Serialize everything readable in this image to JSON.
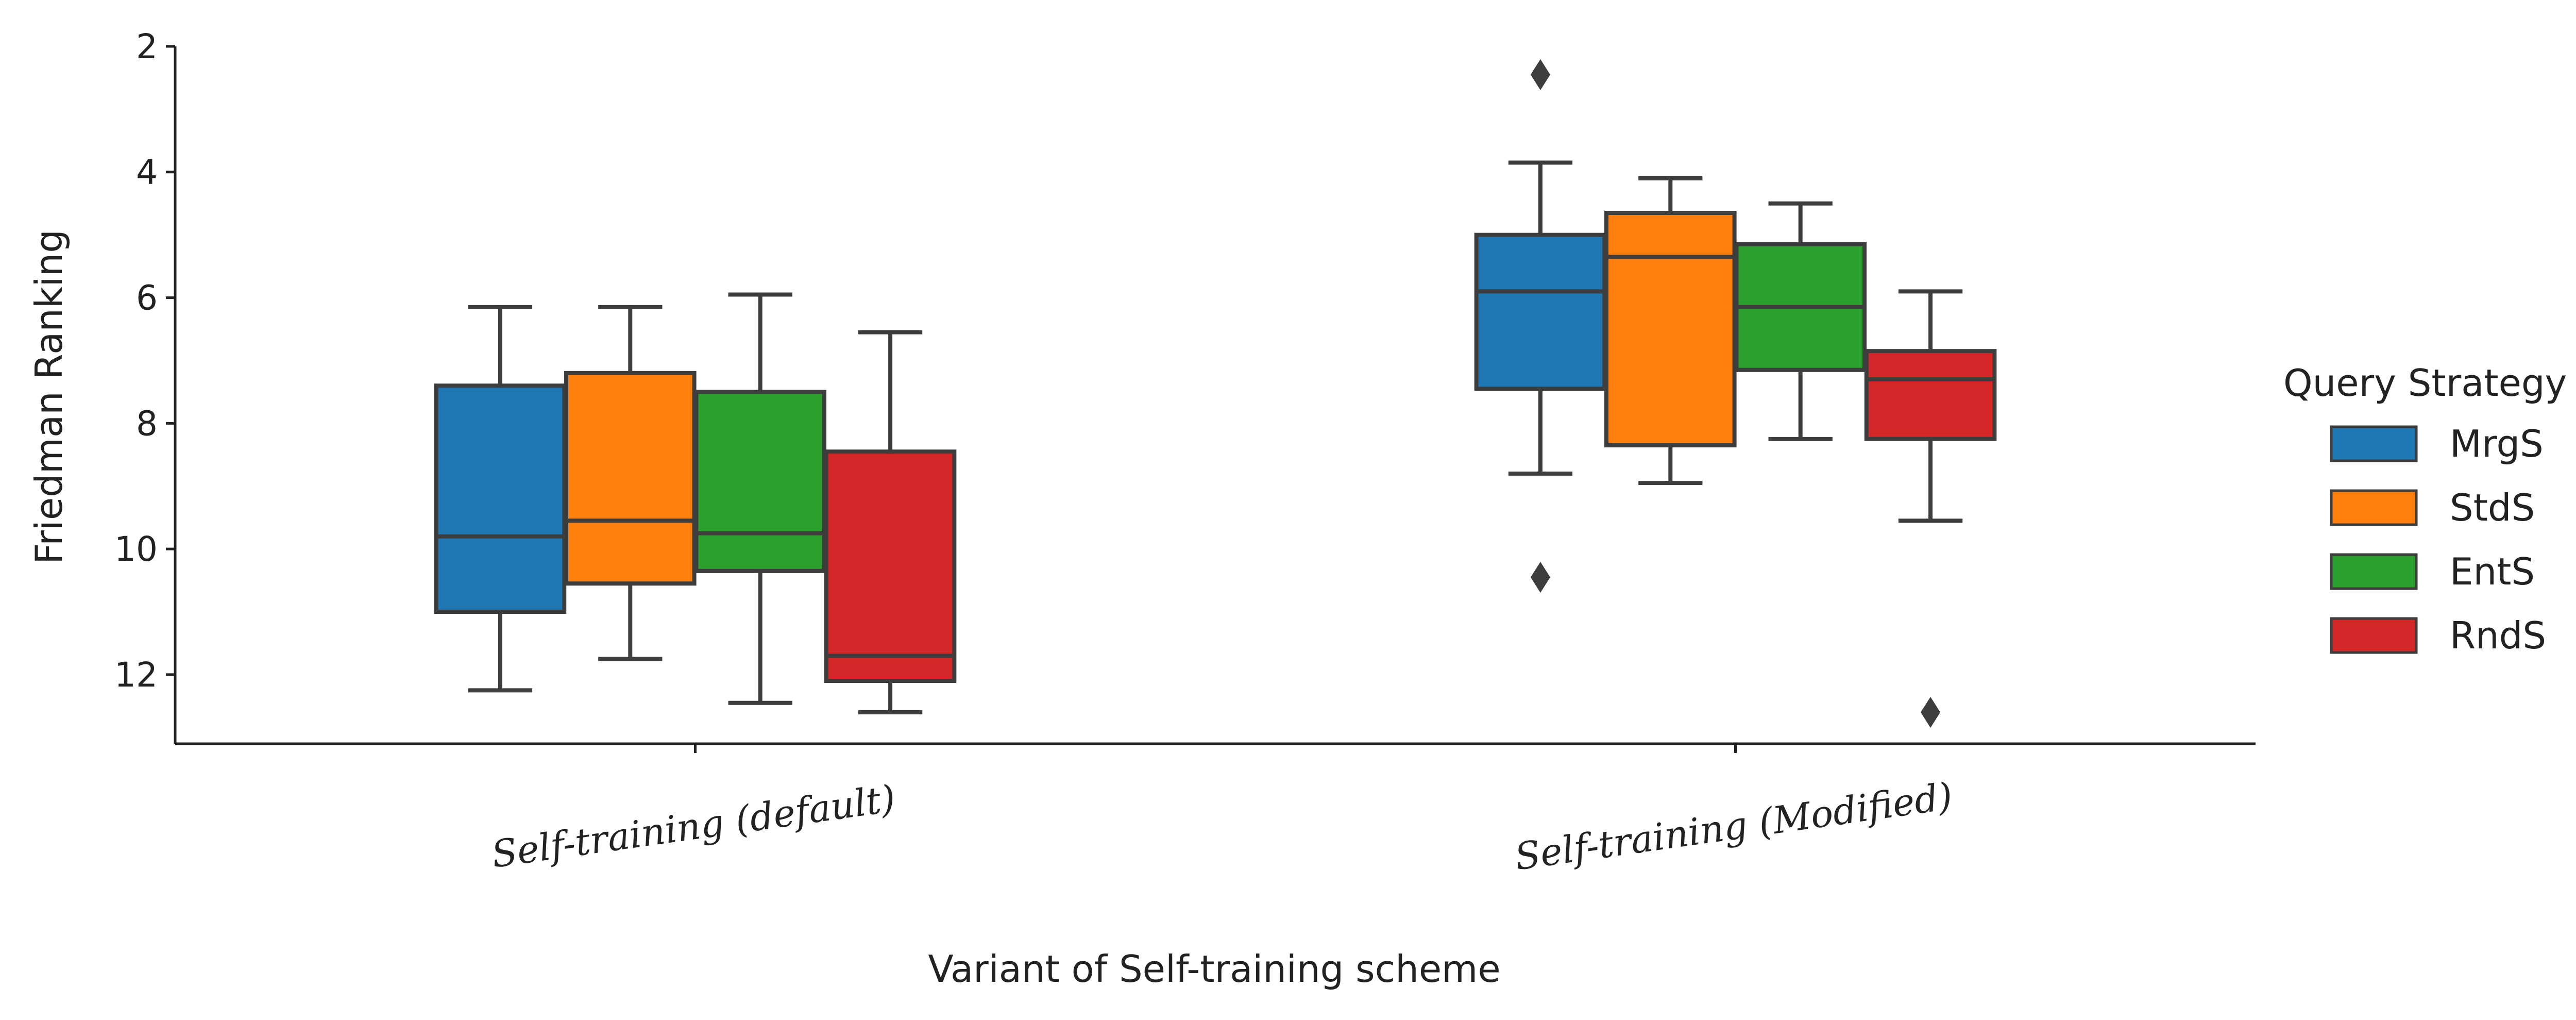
{
  "chart_data": {
    "type": "box",
    "xlabel": "Variant of Self-training scheme",
    "ylabel": "Friedman Ranking",
    "ylim": [
      13.1,
      2.0
    ],
    "y_inverted": true,
    "yticks": [
      2,
      4,
      6,
      8,
      10,
      12
    ],
    "categories": [
      "Self-training (default)",
      "Self-training (Modified)"
    ],
    "legend": {
      "title": "Query Strategy",
      "placement": "center-right"
    },
    "grid": false,
    "series": [
      {
        "name": "MrgS",
        "color": "#1f77b4",
        "boxes": [
          {
            "whisker_low": 6.15,
            "q1": 7.4,
            "median": 9.8,
            "q3": 11.0,
            "whisker_high": 12.25,
            "outliers": []
          },
          {
            "whisker_low": 3.85,
            "q1": 5.0,
            "median": 5.9,
            "q3": 7.45,
            "whisker_high": 8.8,
            "outliers": [
              2.45,
              10.45
            ]
          }
        ]
      },
      {
        "name": "StdS",
        "color": "#ff7f0e",
        "boxes": [
          {
            "whisker_low": 6.15,
            "q1": 7.2,
            "median": 9.55,
            "q3": 10.55,
            "whisker_high": 11.75,
            "outliers": []
          },
          {
            "whisker_low": 4.1,
            "q1": 4.65,
            "median": 5.35,
            "q3": 8.35,
            "whisker_high": 8.95,
            "outliers": []
          }
        ]
      },
      {
        "name": "EntS",
        "color": "#2ca02c",
        "boxes": [
          {
            "whisker_low": 5.95,
            "q1": 7.5,
            "median": 9.75,
            "q3": 10.35,
            "whisker_high": 12.45,
            "outliers": []
          },
          {
            "whisker_low": 4.5,
            "q1": 5.15,
            "median": 6.15,
            "q3": 7.15,
            "whisker_high": 8.25,
            "outliers": []
          }
        ]
      },
      {
        "name": "RndS",
        "color": "#d62728",
        "boxes": [
          {
            "whisker_low": 6.55,
            "q1": 8.45,
            "median": 11.7,
            "q3": 12.1,
            "whisker_high": 12.6,
            "outliers": []
          },
          {
            "whisker_low": 5.9,
            "q1": 6.85,
            "median": 7.3,
            "q3": 8.25,
            "whisker_high": 9.55,
            "outliers": [
              12.6
            ]
          }
        ]
      }
    ]
  }
}
